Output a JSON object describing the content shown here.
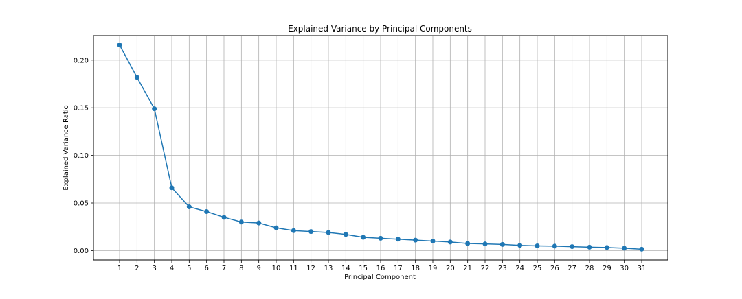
{
  "chart_data": {
    "type": "line",
    "title": "Explained Variance by Principal Components",
    "xlabel": "Principal Component",
    "ylabel": "Explained Variance Ratio",
    "x": [
      1,
      2,
      3,
      4,
      5,
      6,
      7,
      8,
      9,
      10,
      11,
      12,
      13,
      14,
      15,
      16,
      17,
      18,
      19,
      20,
      21,
      22,
      23,
      24,
      25,
      26,
      27,
      28,
      29,
      30,
      31
    ],
    "series": [
      {
        "values": [
          0.216,
          0.182,
          0.149,
          0.066,
          0.046,
          0.041,
          0.035,
          0.03,
          0.029,
          0.024,
          0.021,
          0.02,
          0.019,
          0.017,
          0.014,
          0.013,
          0.012,
          0.011,
          0.01,
          0.009,
          0.0075,
          0.007,
          0.0065,
          0.0055,
          0.005,
          0.0047,
          0.0042,
          0.0036,
          0.0033,
          0.0025,
          0.0015
        ],
        "color": "#1f77b4",
        "marker": "circle"
      }
    ],
    "xticks": [
      "1",
      "2",
      "3",
      "4",
      "5",
      "6",
      "7",
      "8",
      "9",
      "10",
      "11",
      "12",
      "13",
      "14",
      "15",
      "16",
      "17",
      "18",
      "19",
      "20",
      "21",
      "22",
      "23",
      "24",
      "25",
      "26",
      "27",
      "28",
      "29",
      "30",
      "31"
    ],
    "yticks": [
      "0.00",
      "0.05",
      "0.10",
      "0.15",
      "0.20"
    ],
    "ytick_values": [
      0.0,
      0.05,
      0.1,
      0.15,
      0.2
    ],
    "xlim": [
      -0.5,
      32.5
    ],
    "ylim": [
      -0.0098,
      0.2258
    ],
    "grid": true,
    "legend": false
  }
}
